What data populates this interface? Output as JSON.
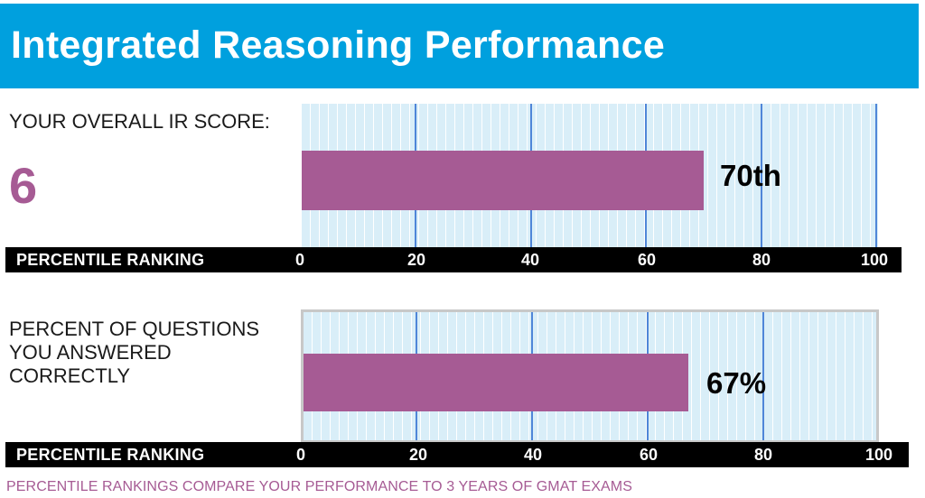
{
  "header": {
    "title": "Integrated Reasoning Performance"
  },
  "section1": {
    "label": "YOUR OVERALL IR SCORE:",
    "score": "6"
  },
  "section2": {
    "label_lines": [
      "PERCENT OF QUESTIONS",
      "YOU ANSWERED",
      "CORRECTLY"
    ]
  },
  "axis_title": "PERCENTILE RANKING",
  "footer": "PERCENTILE RANKINGS COMPARE YOUR PERFORMANCE TO 3 YEARS OF GMAT EXAMS",
  "colors": {
    "header_bg": "#00a0de",
    "bar": "#a65b94",
    "plot_bg": "#d9eef8",
    "gridline": "#4f86d8"
  },
  "chart_data": [
    {
      "type": "bar",
      "orientation": "horizontal",
      "values": [
        70
      ],
      "value_label": "70th",
      "xlabel": "PERCENTILE RANKING",
      "xlim": [
        0,
        100
      ],
      "ticks": [
        "0",
        "20",
        "40",
        "60",
        "80",
        "100"
      ],
      "grid": true
    },
    {
      "type": "bar",
      "orientation": "horizontal",
      "values": [
        67
      ],
      "value_label": "67%",
      "xlabel": "PERCENTILE RANKING",
      "xlim": [
        0,
        100
      ],
      "ticks": [
        "0",
        "20",
        "40",
        "60",
        "80",
        "100"
      ],
      "grid": true
    }
  ]
}
